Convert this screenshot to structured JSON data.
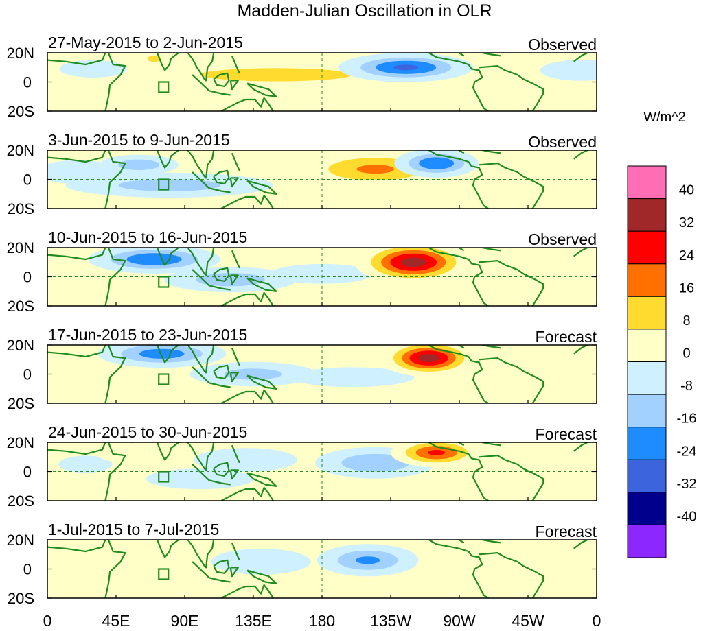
{
  "title": "Madden-Julian Oscillation in OLR",
  "units": "W/m^2",
  "chart_data": {
    "type": "heatmap",
    "title": "Madden-Julian Oscillation in OLR",
    "variable": "OLR anomaly",
    "units": "W/m^2",
    "x_ticks": [
      "0",
      "45E",
      "90E",
      "135E",
      "180",
      "135W",
      "90W",
      "45W",
      "0"
    ],
    "x_tick_lon": [
      0,
      45,
      90,
      135,
      180,
      225,
      270,
      315,
      360
    ],
    "y_ticks": [
      "20N",
      "0",
      "20S"
    ],
    "y_tick_lat": [
      20,
      0,
      -20
    ],
    "xlim": [
      0,
      360
    ],
    "ylim": [
      -20,
      20
    ],
    "colorbar": {
      "levels": [
        "40",
        "32",
        "24",
        "16",
        "8",
        "0",
        "-8",
        "-16",
        "-24",
        "-32",
        "-40"
      ],
      "colors": [
        "#ff6eb4",
        "#a02828",
        "#ff0000",
        "#ff7000",
        "#ffdb30",
        "#ffffc8",
        "#cff0ff",
        "#a2d0ff",
        "#1e8cff",
        "#3c64dc",
        "#00008c",
        "#8c28ff"
      ]
    },
    "panels": [
      {
        "period": "27-May-2015 to 2-Jun-2015",
        "kind": "Observed",
        "features": [
          {
            "lon": 235,
            "lat": 10,
            "slon": 22,
            "slat": 5,
            "val": -30
          },
          {
            "lon": 150,
            "lat": 5,
            "slon": 55,
            "slat": 5,
            "val": 18
          },
          {
            "lon": 70,
            "lat": 16,
            "slon": 8,
            "slat": 4,
            "val": 14
          },
          {
            "lon": 30,
            "lat": 9,
            "slon": 15,
            "slat": 4,
            "val": -12
          },
          {
            "lon": 110,
            "lat": -4,
            "slon": 40,
            "slat": 10,
            "val": 6
          },
          {
            "lon": 350,
            "lat": 8,
            "slon": 30,
            "slat": 8,
            "val": -6
          }
        ]
      },
      {
        "period": "3-Jun-2015 to 9-Jun-2015",
        "kind": "Observed",
        "features": [
          {
            "lon": 215,
            "lat": 7,
            "slon": 28,
            "slat": 7,
            "val": 22
          },
          {
            "lon": 255,
            "lat": 11,
            "slon": 14,
            "slat": 5,
            "val": -28
          },
          {
            "lon": 80,
            "lat": -4,
            "slon": 40,
            "slat": 5,
            "val": -17
          },
          {
            "lon": 60,
            "lat": 10,
            "slon": 15,
            "slat": 4,
            "val": -18
          },
          {
            "lon": 20,
            "lat": 5,
            "slon": 20,
            "slat": 6,
            "val": -10
          },
          {
            "lon": 150,
            "lat": -6,
            "slon": 50,
            "slat": 8,
            "val": 5
          }
        ]
      },
      {
        "period": "10-Jun-2015 to 16-Jun-2015",
        "kind": "Observed",
        "features": [
          {
            "lon": 240,
            "lat": 10,
            "slon": 18,
            "slat": 7,
            "val": 40
          },
          {
            "lon": 70,
            "lat": 12,
            "slon": 22,
            "slat": 5,
            "val": -28
          },
          {
            "lon": 120,
            "lat": -2,
            "slon": 25,
            "slat": 5,
            "val": -18
          },
          {
            "lon": 180,
            "lat": 2,
            "slon": 25,
            "slat": 5,
            "val": -10
          },
          {
            "lon": 40,
            "lat": -8,
            "slon": 25,
            "slat": 6,
            "val": 6
          }
        ]
      },
      {
        "period": "17-Jun-2015 to 23-Jun-2015",
        "kind": "Forecast",
        "features": [
          {
            "lon": 250,
            "lat": 11,
            "slon": 15,
            "slat": 6,
            "val": 40
          },
          {
            "lon": 75,
            "lat": 14,
            "slon": 22,
            "slat": 5,
            "val": -25
          },
          {
            "lon": 135,
            "lat": 0,
            "slon": 25,
            "slat": 5,
            "val": -16
          },
          {
            "lon": 200,
            "lat": -2,
            "slon": 30,
            "slat": 5,
            "val": -10
          },
          {
            "lon": 110,
            "lat": 14,
            "slon": 20,
            "slat": 4,
            "val": 8
          }
        ]
      },
      {
        "period": "24-Jun-2015 to 30-Jun-2015",
        "kind": "Forecast",
        "features": [
          {
            "lon": 255,
            "lat": 13,
            "slon": 15,
            "slat": 5,
            "val": 30
          },
          {
            "lon": 215,
            "lat": 6,
            "slon": 22,
            "slat": 6,
            "val": -20
          },
          {
            "lon": 60,
            "lat": 12,
            "slon": 20,
            "slat": 5,
            "val": 10
          },
          {
            "lon": 130,
            "lat": 8,
            "slon": 25,
            "slat": 6,
            "val": -10
          },
          {
            "lon": 100,
            "lat": -5,
            "slon": 30,
            "slat": 6,
            "val": -8
          },
          {
            "lon": 25,
            "lat": 5,
            "slon": 15,
            "slat": 5,
            "val": -8
          }
        ]
      },
      {
        "period": "1-Jul-2015 to 7-Jul-2015",
        "kind": "Forecast",
        "features": [
          {
            "lon": 210,
            "lat": 6,
            "slon": 18,
            "slat": 6,
            "val": -22
          },
          {
            "lon": 60,
            "lat": 12,
            "slon": 20,
            "slat": 5,
            "val": 12
          },
          {
            "lon": 140,
            "lat": 5,
            "slon": 22,
            "slat": 6,
            "val": -12
          },
          {
            "lon": 120,
            "lat": -4,
            "slon": 20,
            "slat": 6,
            "val": 10
          },
          {
            "lon": 160,
            "lat": -10,
            "slon": 15,
            "slat": 6,
            "val": 8
          },
          {
            "lon": 270,
            "lat": 10,
            "slon": 20,
            "slat": 6,
            "val": 6
          }
        ]
      }
    ]
  }
}
